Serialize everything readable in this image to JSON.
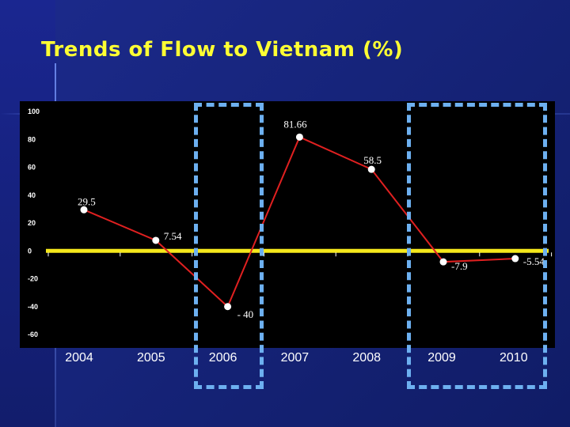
{
  "title": "Trends of Flow to Vietnam (%)",
  "colors": {
    "line": "#e02020",
    "marker": "#ffffff",
    "zero_line": "#f5e81c",
    "highlight": "#6db0f0",
    "title": "#ffff33"
  },
  "chart_data": {
    "type": "line",
    "title": "Trends of Flow to Vietnam (%)",
    "xlabel": "",
    "ylabel": "",
    "ylim": [
      -60,
      100
    ],
    "yticks": [
      "100",
      "80",
      "60",
      "40",
      "20",
      "0",
      "-20",
      "-40",
      "-60"
    ],
    "categories": [
      "2004",
      "2005",
      "2006",
      "2007",
      "2008",
      "2009",
      "2010"
    ],
    "series": [
      {
        "values": [
          29.5,
          7.54,
          -40,
          81.66,
          58.5,
          -7.9,
          -5.54
        ],
        "labels": [
          "29.5",
          "7.54",
          "- 40",
          "81.66",
          "58.5",
          "-7.9",
          "-5.54"
        ]
      }
    ],
    "grid": false,
    "highlighted_categories": [
      "2006",
      "2009",
      "2010"
    ]
  }
}
